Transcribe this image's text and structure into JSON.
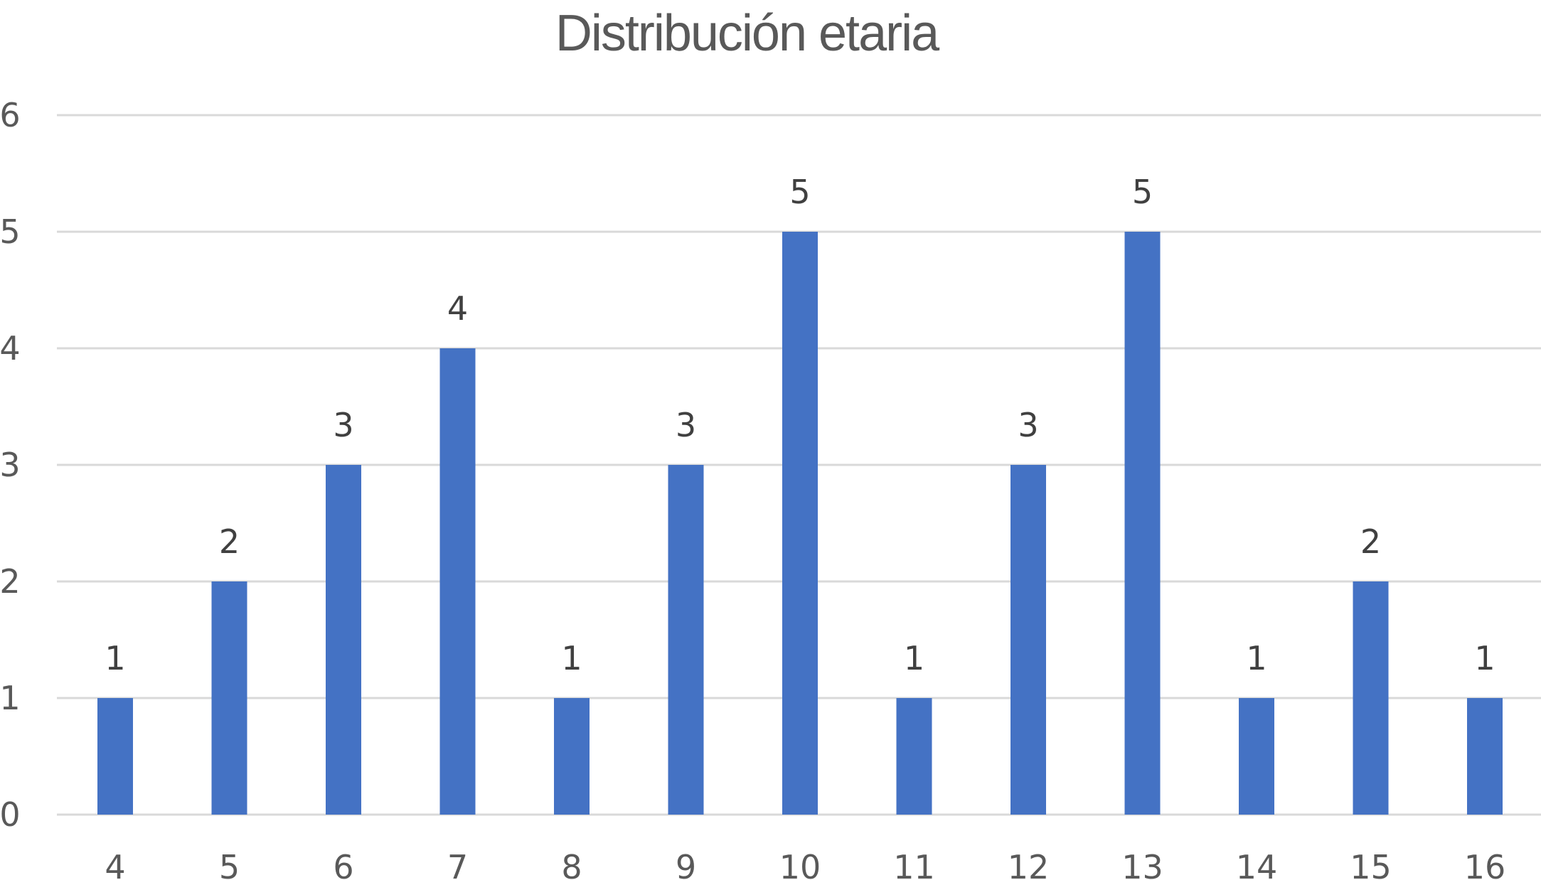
{
  "chart_data": {
    "type": "bar",
    "title": "Distribución etaria",
    "categories": [
      "4",
      "5",
      "6",
      "7",
      "8",
      "9",
      "10",
      "11",
      "12",
      "13",
      "14",
      "15",
      "16"
    ],
    "values": [
      1,
      2,
      3,
      4,
      1,
      3,
      5,
      1,
      3,
      5,
      1,
      2,
      1
    ],
    "y_ticks": [
      "0",
      "1",
      "2",
      "3",
      "4",
      "5",
      "6"
    ],
    "ylim": [
      0,
      6
    ],
    "xlabel": "",
    "ylabel": "",
    "grid": true,
    "legend": "none",
    "data_labels": true,
    "bar_color": "#4472C4",
    "grid_color": "#D9D9D9"
  }
}
